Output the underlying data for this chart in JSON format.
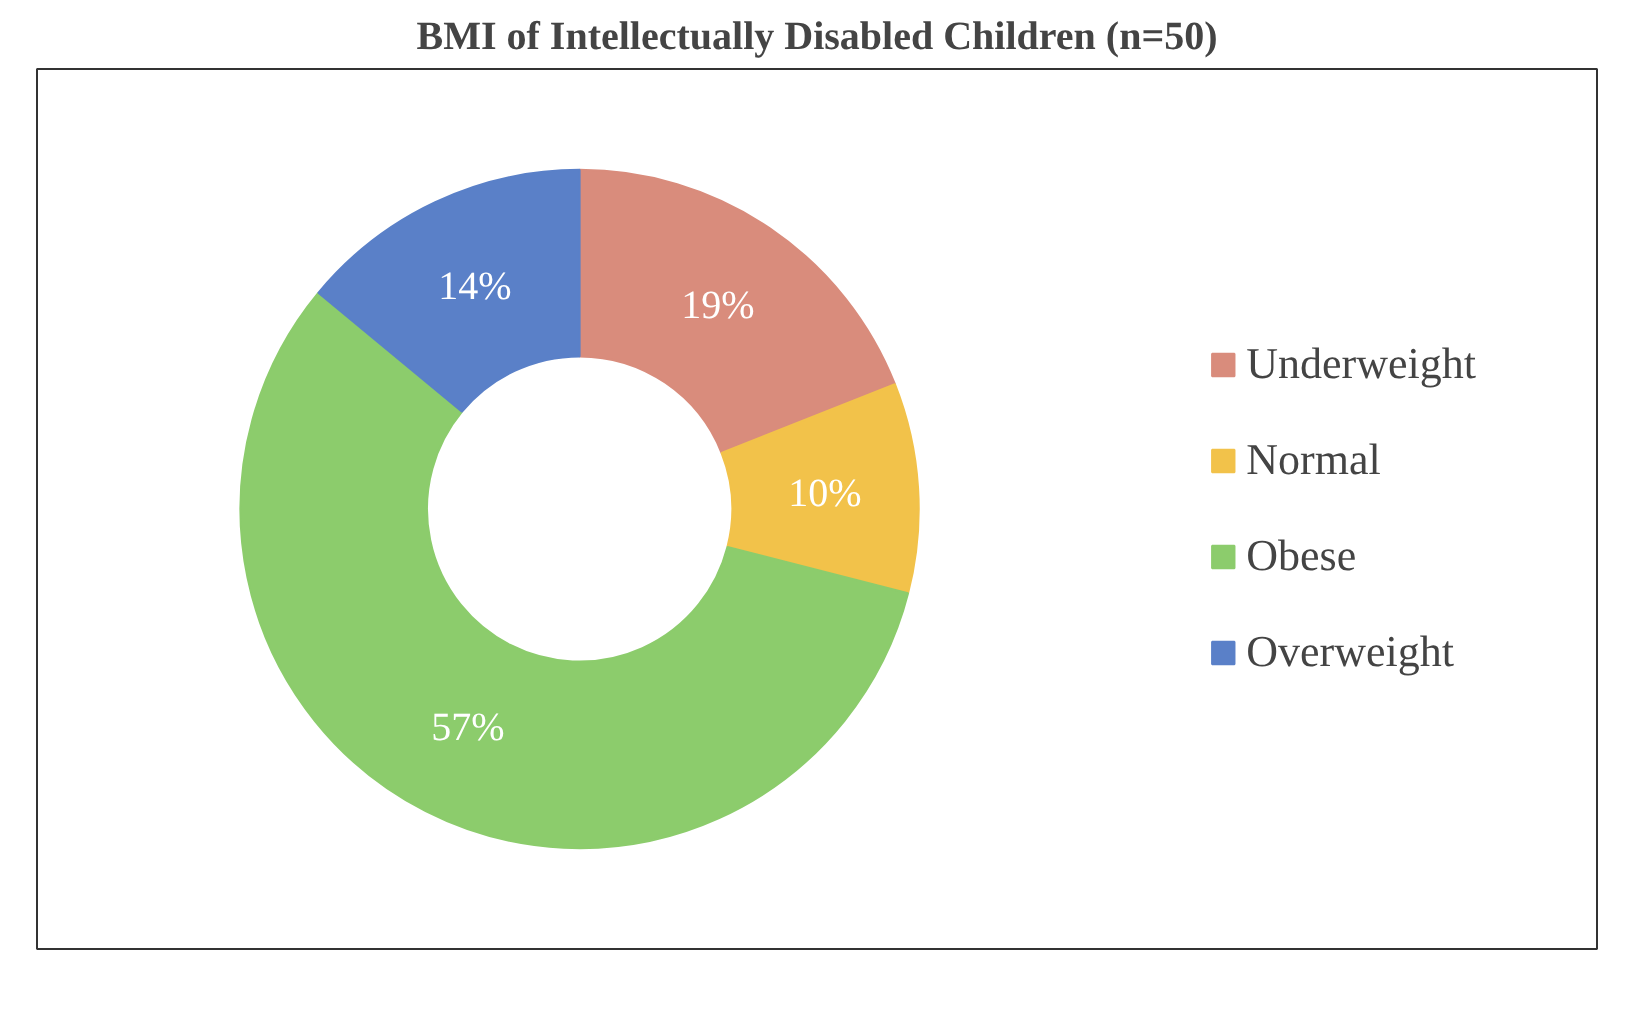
{
  "chart_data": {
    "type": "donut",
    "title": "BMI of Intellectually Disabled Children (n=50)",
    "categories": [
      "Underweight",
      "Normal",
      "Obese",
      "Overweight"
    ],
    "values": [
      19,
      10,
      57,
      14
    ],
    "colors": [
      "#d98c7c",
      "#f2c24a",
      "#8ccc6c",
      "#5a80c8"
    ],
    "value_labels": [
      "19%",
      "10%",
      "57%",
      "14%"
    ],
    "legend": "right"
  }
}
